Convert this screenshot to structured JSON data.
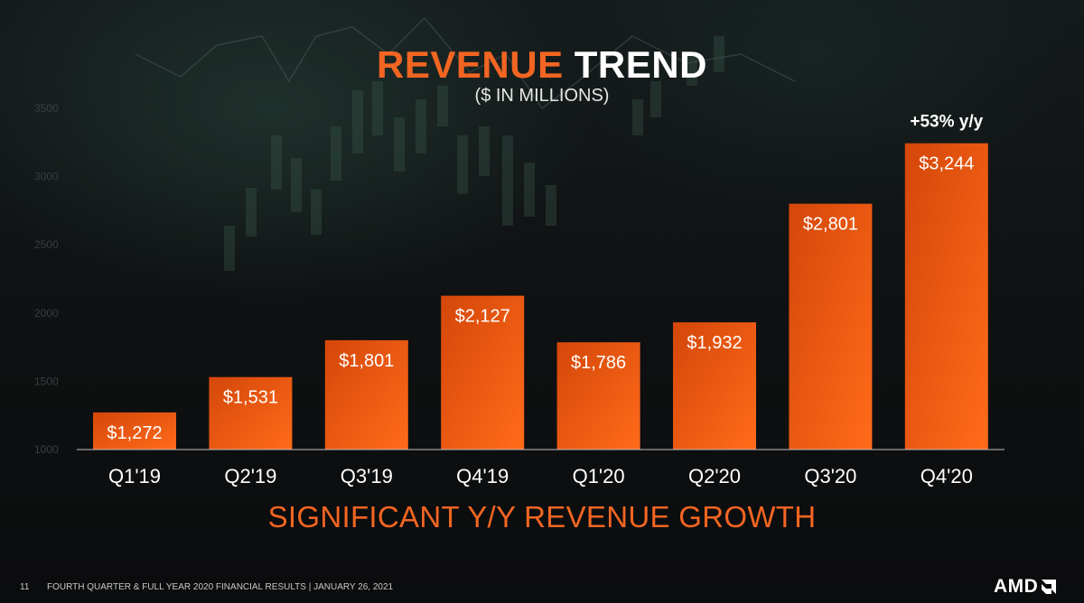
{
  "slide": {
    "title_highlight": "REVENUE",
    "title_rest": "TREND",
    "subtitle": "($ IN MILLIONS)",
    "tagline": "SIGNIFICANT Y/Y REVENUE GROWTH",
    "page_number": "11",
    "footer_text": "FOURTH QUARTER & FULL YEAR 2020 FINANCIAL RESULTS  |  JANUARY 26, 2021",
    "logo_text": "AMD"
  },
  "colors": {
    "accent": "#f26522",
    "bar_top": "#d4470a",
    "bar_bottom": "#ff6b1a"
  },
  "chart_data": {
    "type": "bar",
    "title": "REVENUE TREND",
    "subtitle": "($ IN MILLIONS)",
    "categories": [
      "Q1'19",
      "Q2'19",
      "Q3'19",
      "Q4'19",
      "Q1'20",
      "Q2'20",
      "Q3'20",
      "Q4'20"
    ],
    "values": [
      1272,
      1531,
      1801,
      2127,
      1786,
      1932,
      2801,
      3244
    ],
    "value_labels": [
      "$1,272",
      "$1,531",
      "$1,801",
      "$2,127",
      "$1,786",
      "$1,932",
      "$2,801",
      "$3,244"
    ],
    "ylim": [
      1000,
      3500
    ],
    "yticks": [
      1000,
      1500,
      2000,
      2500,
      3000,
      3500
    ],
    "ytick_labels": [
      "1000",
      "1500",
      "2000",
      "2500",
      "3000",
      "3500"
    ],
    "xlabel": "",
    "ylabel": "",
    "grid": false,
    "annotation": {
      "text": "+53% y/y",
      "category": "Q4'20"
    }
  }
}
